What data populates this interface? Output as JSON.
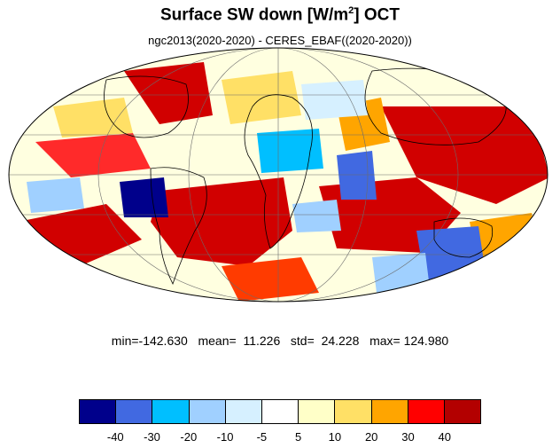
{
  "title": {
    "main": "Surface SW down [W/m",
    "sup": "2",
    "tail": "]  OCT"
  },
  "subtitle": "ngc2013(2020-2020) - CERES_EBAF((2020-2020))",
  "stats": {
    "min_label": "min=",
    "min": "-142.630",
    "mean_label": "mean=",
    "mean": "11.226",
    "std_label": "std=",
    "std": "24.228",
    "max_label": "max=",
    "max": "124.980"
  },
  "colorbar": {
    "colors": [
      "#00008b",
      "#4169e1",
      "#00bfff",
      "#a0d0ff",
      "#d6f0ff",
      "#ffffff",
      "#ffffc8",
      "#ffe066",
      "#ffa500",
      "#ff0000",
      "#b30000"
    ],
    "ticks": [
      "-40",
      "-30",
      "-20",
      "-10",
      "-5",
      "5",
      "10",
      "20",
      "30",
      "40"
    ]
  }
}
